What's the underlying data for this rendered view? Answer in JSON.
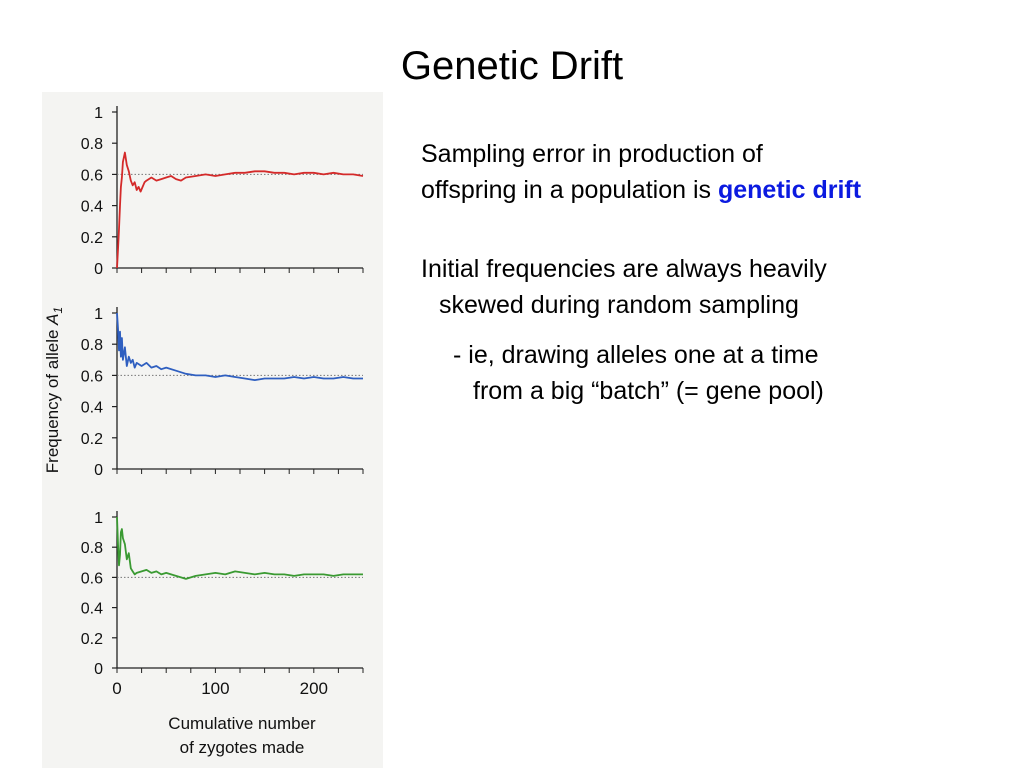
{
  "slide": {
    "title": "Genetic Drift",
    "paragraph1": {
      "line1": "Sampling error in production of",
      "line2_prefix": "offspring in a population is ",
      "highlight": "genetic drift"
    },
    "paragraph2": {
      "line1": "Initial frequencies are always heavily",
      "line2": "skewed during random sampling"
    },
    "bullet": {
      "line1": "- ie, drawing alleles one at a time",
      "line2": "from a big “batch” (= gene pool)"
    }
  },
  "figure": {
    "ylabel_prefix": "Frequency of allele ",
    "ylabel_allele": "A",
    "ylabel_subscript": "1",
    "xlabel_line1": "Cumulative number",
    "xlabel_line2": "of zygotes made"
  },
  "colors": {
    "red": "#d42a2a",
    "blue": "#2f5fc0",
    "green": "#3a9a32",
    "highlight": "#0b1ae0"
  },
  "chart_data": [
    {
      "type": "line",
      "panel": "top",
      "xlim": [
        0,
        250
      ],
      "ylim": [
        0,
        1
      ],
      "yticks": [
        "0",
        "0.2",
        "0.4",
        "0.6",
        "0.8",
        "1"
      ],
      "reference_line": 0.6,
      "series": [
        {
          "color": "#d42a2a",
          "x": [
            0,
            1,
            2,
            3,
            4,
            5,
            6,
            8,
            10,
            12,
            14,
            16,
            18,
            20,
            22,
            24,
            26,
            28,
            30,
            35,
            40,
            45,
            50,
            55,
            60,
            65,
            70,
            80,
            90,
            100,
            110,
            120,
            130,
            140,
            150,
            160,
            170,
            180,
            190,
            200,
            210,
            220,
            230,
            240,
            250
          ],
          "values": [
            0,
            0.12,
            0.25,
            0.4,
            0.52,
            0.58,
            0.68,
            0.74,
            0.66,
            0.62,
            0.56,
            0.53,
            0.55,
            0.5,
            0.52,
            0.49,
            0.52,
            0.55,
            0.56,
            0.58,
            0.56,
            0.57,
            0.58,
            0.59,
            0.57,
            0.56,
            0.58,
            0.59,
            0.6,
            0.59,
            0.6,
            0.61,
            0.61,
            0.62,
            0.62,
            0.61,
            0.61,
            0.6,
            0.61,
            0.61,
            0.6,
            0.61,
            0.6,
            0.6,
            0.59
          ]
        }
      ]
    },
    {
      "type": "line",
      "panel": "middle",
      "xlim": [
        0,
        250
      ],
      "ylim": [
        0,
        1
      ],
      "yticks": [
        "0",
        "0.2",
        "0.4",
        "0.6",
        "0.8",
        "1"
      ],
      "reference_line": 0.6,
      "series": [
        {
          "color": "#2f5fc0",
          "x": [
            0,
            1,
            2,
            3,
            4,
            5,
            6,
            8,
            10,
            12,
            14,
            16,
            18,
            20,
            25,
            30,
            35,
            40,
            45,
            50,
            60,
            70,
            80,
            90,
            100,
            110,
            120,
            130,
            140,
            150,
            160,
            170,
            180,
            190,
            200,
            210,
            220,
            230,
            240,
            250
          ],
          "values": [
            1.0,
            0.9,
            0.76,
            0.88,
            0.72,
            0.84,
            0.7,
            0.78,
            0.66,
            0.72,
            0.68,
            0.7,
            0.65,
            0.68,
            0.66,
            0.68,
            0.65,
            0.66,
            0.64,
            0.65,
            0.63,
            0.61,
            0.6,
            0.6,
            0.59,
            0.6,
            0.59,
            0.58,
            0.57,
            0.58,
            0.58,
            0.58,
            0.59,
            0.58,
            0.59,
            0.58,
            0.58,
            0.59,
            0.58,
            0.58
          ]
        }
      ]
    },
    {
      "type": "line",
      "panel": "bottom",
      "xlim": [
        0,
        250
      ],
      "ylim": [
        0,
        1
      ],
      "yticks": [
        "0",
        "0.2",
        "0.4",
        "0.6",
        "0.8",
        "1"
      ],
      "xticks": [
        "0",
        "100",
        "200"
      ],
      "reference_line": 0.6,
      "series": [
        {
          "color": "#3a9a32",
          "x": [
            0,
            1,
            2,
            3,
            4,
            5,
            6,
            8,
            10,
            12,
            14,
            16,
            18,
            20,
            25,
            30,
            35,
            40,
            45,
            50,
            55,
            60,
            65,
            70,
            80,
            90,
            100,
            110,
            120,
            130,
            140,
            150,
            160,
            170,
            180,
            190,
            200,
            210,
            220,
            230,
            240,
            250
          ],
          "values": [
            1.0,
            0.82,
            0.68,
            0.75,
            0.9,
            0.92,
            0.86,
            0.82,
            0.72,
            0.76,
            0.66,
            0.64,
            0.62,
            0.63,
            0.64,
            0.65,
            0.63,
            0.64,
            0.62,
            0.63,
            0.62,
            0.61,
            0.6,
            0.59,
            0.61,
            0.62,
            0.63,
            0.62,
            0.64,
            0.63,
            0.62,
            0.63,
            0.62,
            0.62,
            0.61,
            0.62,
            0.62,
            0.62,
            0.61,
            0.62,
            0.62,
            0.62
          ]
        }
      ]
    }
  ]
}
